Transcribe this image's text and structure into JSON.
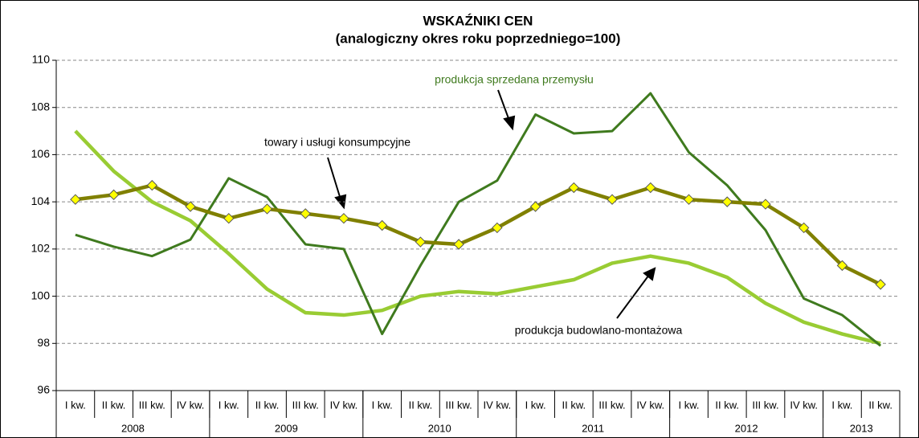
{
  "chart_data": {
    "type": "line",
    "title": "WSKAŹNIKI CEN",
    "subtitle": "(analogiczny okres roku poprzedniego=100)",
    "categories": [
      "I kw.",
      "II kw.",
      "III kw.",
      "IV kw.",
      "I kw.",
      "II kw.",
      "III kw.",
      "IV kw.",
      "I kw.",
      "II kw.",
      "III kw.",
      "IV kw.",
      "I kw.",
      "II kw.",
      "III kw.",
      "IV kw.",
      "I kw.",
      "II kw.",
      "III kw.",
      "IV kw.",
      "I kw.",
      "II kw."
    ],
    "years": [
      "2008",
      "2009",
      "2010",
      "2011",
      "2012",
      "2013"
    ],
    "series": [
      {
        "name": "produkcja budowlano-montażowa",
        "color": "#99cc33",
        "values": [
          107.0,
          105.3,
          104.0,
          103.2,
          101.8,
          100.3,
          99.3,
          99.2,
          99.4,
          100.0,
          100.2,
          100.1,
          100.4,
          100.7,
          101.4,
          101.7,
          101.4,
          100.8,
          99.7,
          98.9,
          98.4,
          98.0
        ]
      },
      {
        "name": "produkcja sprzedana przemysłu",
        "color": "#3f7a1e",
        "values": [
          102.6,
          102.1,
          101.7,
          102.4,
          105.0,
          104.2,
          102.2,
          102.0,
          98.4,
          101.3,
          104.0,
          104.9,
          107.7,
          106.9,
          107.0,
          108.6,
          106.1,
          104.7,
          102.8,
          99.9,
          99.2,
          97.9
        ]
      },
      {
        "name": "towary i usługi konsumpcyjne",
        "color": "#808000",
        "marker_color": "#ffff00",
        "values": [
          104.1,
          104.3,
          104.7,
          103.8,
          103.3,
          103.7,
          103.5,
          103.3,
          103.0,
          102.3,
          102.2,
          102.9,
          103.8,
          104.6,
          104.1,
          104.6,
          104.1,
          104.0,
          103.9,
          102.9,
          101.3,
          100.5
        ]
      }
    ],
    "ylim": [
      96,
      110
    ],
    "yticks": [
      96,
      98,
      100,
      102,
      104,
      106,
      108,
      110
    ],
    "grid": true
  }
}
